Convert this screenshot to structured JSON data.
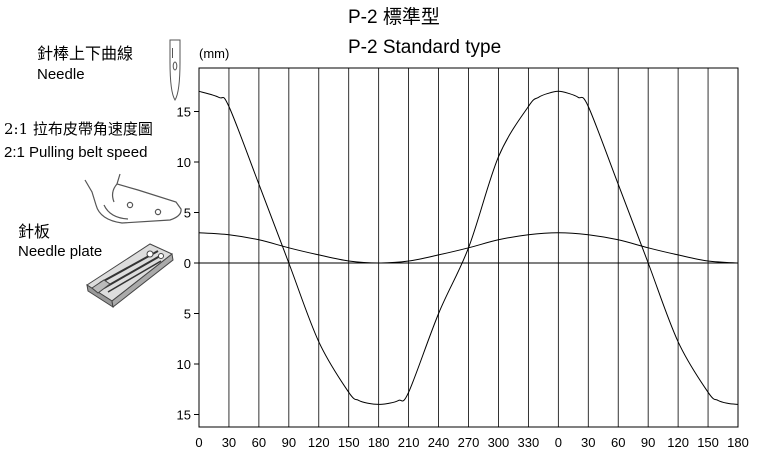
{
  "title_zh": "P-2 標準型",
  "title_en": "P-2 Standard type",
  "legend": {
    "needle_zh": "針棒上下曲線",
    "needle_en": "Needle",
    "belt_zh": "2:1 拉布皮帶角速度圖",
    "belt_en": "2:1 Pulling belt speed",
    "plate_zh": "針板",
    "plate_en": "Needle plate"
  },
  "chart_data": {
    "type": "line",
    "title": "P-2 Standard type",
    "ylabel": "(mm)",
    "xlabel": "",
    "x_tick_labels": [
      "0",
      "30",
      "60",
      "90",
      "120",
      "150",
      "180",
      "210",
      "240",
      "270",
      "300",
      "330",
      "0",
      "30",
      "60",
      "90",
      "120",
      "150",
      "180"
    ],
    "xlim": [
      0,
      540
    ],
    "y_tick_labels": [
      "15",
      "10",
      "5",
      "0",
      "5",
      "10",
      "15"
    ],
    "ylim": [
      -16,
      16
    ],
    "grid": "vertical",
    "series": [
      {
        "x": [
          0,
          20,
          30,
          60,
          90,
          120,
          150,
          160,
          170,
          180,
          190,
          200,
          210,
          240,
          270,
          300,
          330,
          340,
          350,
          360,
          370,
          380,
          390,
          420,
          450,
          480,
          510,
          520,
          530,
          540
        ],
        "values": [
          17,
          16.4,
          15.5,
          7.8,
          0,
          -7.8,
          -12.8,
          -13.6,
          -13.9,
          -14,
          -13.9,
          -13.6,
          -12.8,
          -5,
          1.5,
          10.5,
          15.5,
          16.4,
          16.8,
          17,
          16.8,
          16.4,
          15.5,
          7.8,
          0,
          -7.8,
          -12.8,
          -13.6,
          -13.9,
          -14
        ]
      },
      {
        "x": [
          0,
          30,
          60,
          90,
          120,
          150,
          180,
          210,
          240,
          270,
          300,
          330,
          360,
          390,
          420,
          450,
          480,
          510,
          540
        ],
        "values": [
          3,
          2.8,
          2.3,
          1.5,
          0.8,
          0.2,
          0,
          0.2,
          0.8,
          1.5,
          2.3,
          2.8,
          3,
          2.8,
          2.3,
          1.5,
          0.8,
          0.2,
          0
        ]
      }
    ]
  },
  "colors": {
    "line": "#000000",
    "grid": "#000000",
    "icon_gray": "#555555"
  },
  "icons": [
    "needle-icon",
    "pulling-belt-icon",
    "needle-plate-icon"
  ]
}
